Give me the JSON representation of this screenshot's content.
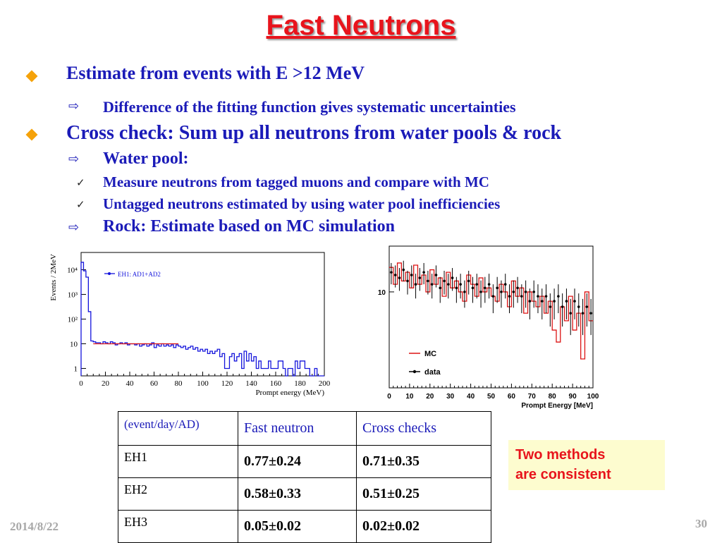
{
  "slide": {
    "title": "Fast Neutrons",
    "date": "2014/8/22",
    "page_number": "30"
  },
  "bullets": {
    "b1": "Estimate from events with E >12 MeV",
    "b1_sub": "Difference of the fitting function gives systematic uncertainties",
    "b2": "Cross check: Sum up all neutrons from water pools & rock",
    "b2_sub1": "Water pool:",
    "b2_check1": "Measure neutrons from tagged muons and compare with MC",
    "b2_check2": "Untagged neutrons estimated by using water pool inefficiencies",
    "b2_sub2": "Rock: Estimate based on MC simulation"
  },
  "chart_data": [
    {
      "type": "line",
      "title": "",
      "legend": "EH1: AD1+AD2",
      "legend_placement": "top-left",
      "xlabel": "Prompt energy (MeV)",
      "ylabel": "Events / 2MeV",
      "y_scale": "log",
      "xlim": [
        0,
        200
      ],
      "ylim": [
        0.5,
        50000
      ],
      "x_ticks": [
        "0",
        "20",
        "40",
        "60",
        "80",
        "100",
        "120",
        "140",
        "160",
        "180",
        "200"
      ],
      "y_ticks": [
        "1",
        "10",
        "10²",
        "10³",
        "10⁴"
      ],
      "colors": {
        "data": "#1414dc",
        "fit": "#dc1414"
      },
      "series": [
        {
          "name": "EH1: AD1+AD2",
          "x": [
            1,
            3,
            5,
            7,
            9,
            11,
            13,
            15,
            17,
            19,
            21,
            23,
            25,
            27,
            29,
            31,
            33,
            35,
            37,
            39,
            41,
            43,
            45,
            47,
            49,
            51,
            53,
            55,
            57,
            59,
            61,
            63,
            65,
            67,
            69,
            71,
            73,
            75,
            77,
            79,
            81,
            83,
            85,
            87,
            89,
            91,
            93,
            95,
            97,
            99,
            101,
            103,
            105,
            107,
            109,
            111,
            113,
            115,
            117,
            119,
            121,
            123,
            125,
            127,
            129,
            131,
            133,
            135,
            137,
            139,
            141,
            143,
            145,
            147,
            149,
            151,
            153,
            155,
            157,
            159,
            161,
            163,
            165,
            167,
            169,
            171,
            173,
            175,
            177,
            179,
            181,
            183,
            185,
            187,
            189,
            191,
            193,
            195,
            197,
            199
          ],
          "values": [
            20000,
            9000,
            5000,
            200,
            13,
            12,
            11,
            11,
            10,
            12,
            11,
            10,
            12,
            11,
            9,
            10,
            11,
            10,
            11,
            9,
            10,
            10,
            9,
            10,
            8,
            9,
            10,
            8,
            9,
            11,
            7,
            9,
            8,
            10,
            8,
            9,
            8,
            9,
            7,
            9,
            8,
            7,
            8,
            6,
            7,
            8,
            6,
            7,
            5,
            6,
            5,
            6,
            4,
            5,
            4,
            5,
            6,
            3,
            4,
            1,
            1,
            3,
            4,
            2,
            3,
            4,
            1,
            5,
            2,
            4,
            2,
            3,
            1,
            2,
            1,
            1,
            1,
            2,
            1,
            1,
            1,
            2,
            2,
            1,
            0,
            1,
            1,
            0,
            2,
            1,
            2,
            2,
            1,
            1,
            0,
            0,
            1,
            0,
            0,
            0
          ]
        },
        {
          "name": "fit",
          "x": [
            10,
            80
          ],
          "values": [
            10,
            10
          ]
        }
      ]
    },
    {
      "type": "line",
      "title": "",
      "legend_placement": "bottom-left",
      "xlabel": "Prompt Energy [MeV]",
      "ylabel": "",
      "xlim": [
        0,
        100
      ],
      "x_ticks": [
        "0",
        "10",
        "20",
        "30",
        "40",
        "50",
        "60",
        "70",
        "80",
        "90",
        "100"
      ],
      "y_ticks": [
        "10"
      ],
      "colors": {
        "mc": "#dc1414",
        "data": "#000000"
      },
      "series": [
        {
          "name": "MC",
          "x": [
            1,
            3,
            5,
            7,
            9,
            11,
            13,
            15,
            17,
            19,
            21,
            23,
            25,
            27,
            29,
            31,
            33,
            35,
            37,
            39,
            41,
            43,
            45,
            47,
            49,
            51,
            53,
            55,
            57,
            59,
            61,
            63,
            65,
            67,
            69,
            71,
            73,
            75,
            77,
            79,
            81,
            83,
            85,
            87,
            89,
            91,
            93,
            95,
            97,
            99
          ],
          "values": [
            18,
            12,
            20,
            13,
            16,
            11,
            19,
            12,
            15,
            10,
            17,
            12,
            14,
            9,
            16,
            11,
            13,
            10,
            8,
            15,
            12,
            9,
            14,
            10,
            11,
            9,
            8,
            12,
            10,
            7,
            13,
            9,
            11,
            6,
            10,
            8,
            7,
            9,
            6,
            8,
            4,
            3,
            7,
            5,
            9,
            4,
            6,
            2,
            10,
            5
          ]
        },
        {
          "name": "data",
          "x": [
            1,
            3,
            5,
            7,
            9,
            11,
            13,
            15,
            17,
            19,
            21,
            23,
            25,
            27,
            29,
            31,
            33,
            35,
            37,
            39,
            41,
            43,
            45,
            47,
            49,
            51,
            53,
            55,
            57,
            59,
            61,
            63,
            65,
            67,
            69,
            71,
            73,
            75,
            77,
            79,
            81,
            83,
            85,
            87,
            89,
            91,
            93,
            95,
            97,
            99
          ],
          "values": [
            16,
            15,
            14,
            17,
            13,
            15,
            12,
            14,
            16,
            13,
            12,
            15,
            11,
            13,
            12,
            14,
            11,
            12,
            10,
            13,
            11,
            12,
            10,
            11,
            12,
            9,
            11,
            10,
            12,
            9,
            10,
            11,
            9,
            10,
            8,
            10,
            9,
            8,
            9,
            7,
            8,
            9,
            7,
            8,
            6,
            8,
            7,
            6,
            7,
            6
          ]
        }
      ]
    }
  ],
  "table": {
    "header": [
      "(event/day/AD)",
      "Fast neutron",
      "Cross checks"
    ],
    "rows": [
      [
        "EH1",
        "0.77±0.24",
        "0.71±0.35"
      ],
      [
        "EH2",
        "0.58±0.33",
        "0.51±0.25"
      ],
      [
        "EH3",
        "0.05±0.02",
        "0.02±0.02"
      ]
    ]
  },
  "note": {
    "line1": "Two methods",
    "line2": "are consistent"
  }
}
